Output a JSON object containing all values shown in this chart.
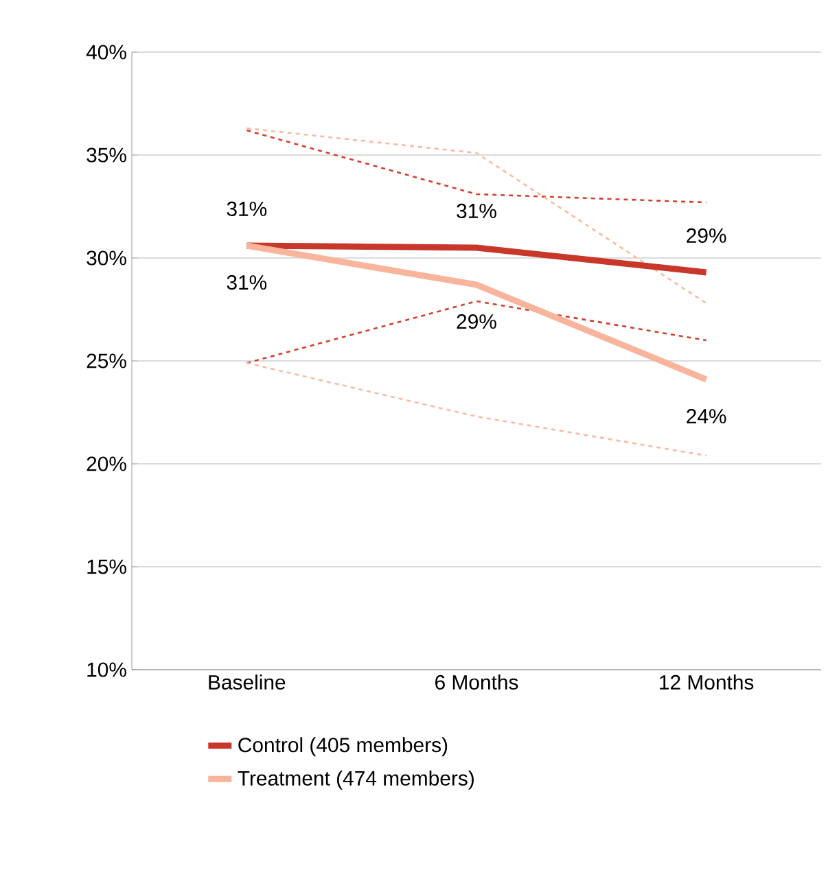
{
  "chart_data": {
    "type": "line",
    "categories": [
      "Baseline",
      "6 Months",
      "12 Months"
    ],
    "series": [
      {
        "color": "#d04030",
        "line_style": "dashed",
        "values": [
          36.2,
          33.1,
          32.7
        ]
      },
      {
        "color": "#d04030",
        "line_style": "dashed",
        "values": [
          24.9,
          27.9,
          26.0
        ]
      },
      {
        "color": "#fbb9a2",
        "line_style": "dashed",
        "values": [
          36.3,
          35.1,
          27.8
        ]
      },
      {
        "color": "#fbb9a2",
        "line_style": "dashed",
        "values": [
          24.9,
          22.3,
          20.4
        ]
      },
      {
        "name": "Control (405 members)",
        "color": "#c8382a",
        "values": [
          30.6,
          30.5,
          29.3
        ],
        "value_labels": [
          "31%",
          "31%",
          "29%"
        ]
      },
      {
        "name": "Treatment (474 members)",
        "color": "#f9b49c",
        "values": [
          30.6,
          28.7,
          24.1
        ],
        "value_labels": [
          "31%",
          "29%",
          "24%"
        ]
      }
    ],
    "ylim": [
      10,
      40
    ],
    "yticks": [
      {
        "value": 10,
        "label": "10%"
      },
      {
        "value": 15,
        "label": "15%"
      },
      {
        "value": 20,
        "label": "20%"
      },
      {
        "value": 25,
        "label": "25%"
      },
      {
        "value": 30,
        "label": "30%"
      },
      {
        "value": 35,
        "label": "35%"
      },
      {
        "value": 40,
        "label": "40%"
      }
    ],
    "grid": "y",
    "legend": "bottom",
    "marker": "none",
    "line_style": "solid"
  }
}
